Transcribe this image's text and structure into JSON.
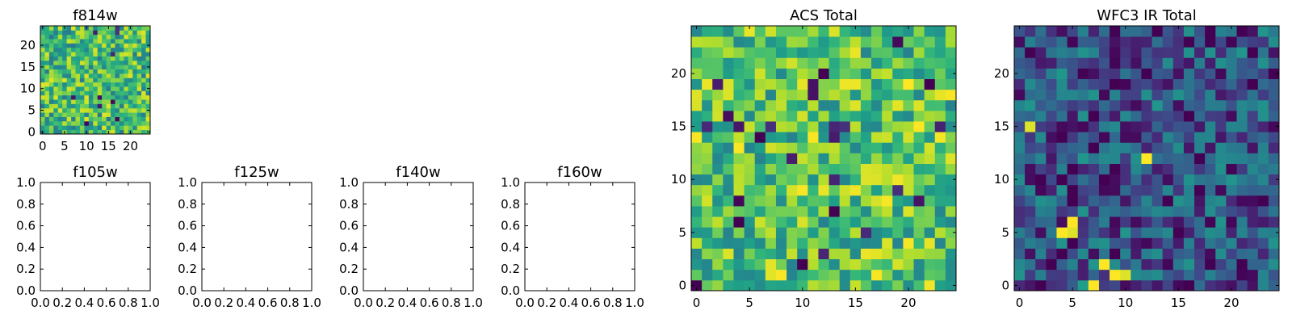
{
  "chart_data": [
    {
      "id": "f814w",
      "type": "heatmap",
      "title": "f814w",
      "colormap": "viridis",
      "grid_size": 25,
      "vmin": 0,
      "vmax": 1,
      "seed": 11,
      "bias": 0.68,
      "xlim": [
        -0.5,
        24.5
      ],
      "ylim": [
        -0.5,
        24.5
      ],
      "xticks": [
        0,
        5,
        10,
        15,
        20
      ],
      "xtick_labels": [
        "0",
        "5",
        "10",
        "15",
        "20"
      ],
      "yticks": [
        0,
        5,
        10,
        15,
        20
      ],
      "ytick_labels": [
        "0",
        "5",
        "10",
        "15",
        "20"
      ],
      "hotspots": []
    },
    {
      "id": "f105w",
      "type": "empty",
      "title": "f105w",
      "xlim": [
        0,
        1
      ],
      "ylim": [
        0,
        1
      ],
      "xticks": [
        0,
        0.2,
        0.4,
        0.6,
        0.8,
        1.0
      ],
      "xtick_labels": [
        "0.0",
        "0.2",
        "0.4",
        "0.6",
        "0.8",
        "1.0"
      ],
      "yticks": [
        0,
        0.2,
        0.4,
        0.6,
        0.8,
        1.0
      ],
      "ytick_labels": [
        "0.0",
        "0.2",
        "0.4",
        "0.6",
        "0.8",
        "1.0"
      ]
    },
    {
      "id": "f125w",
      "type": "empty",
      "title": "f125w",
      "xlim": [
        0,
        1
      ],
      "ylim": [
        0,
        1
      ],
      "xticks": [
        0,
        0.2,
        0.4,
        0.6,
        0.8,
        1.0
      ],
      "xtick_labels": [
        "0.0",
        "0.2",
        "0.4",
        "0.6",
        "0.8",
        "1.0"
      ],
      "yticks": [
        0,
        0.2,
        0.4,
        0.6,
        0.8,
        1.0
      ],
      "ytick_labels": [
        "0.0",
        "0.2",
        "0.4",
        "0.6",
        "0.8",
        "1.0"
      ]
    },
    {
      "id": "f140w",
      "type": "empty",
      "title": "f140w",
      "xlim": [
        0,
        1
      ],
      "ylim": [
        0,
        1
      ],
      "xticks": [
        0,
        0.2,
        0.4,
        0.6,
        0.8,
        1.0
      ],
      "xtick_labels": [
        "0.0",
        "0.2",
        "0.4",
        "0.6",
        "0.8",
        "1.0"
      ],
      "yticks": [
        0,
        0.2,
        0.4,
        0.6,
        0.8,
        1.0
      ],
      "ytick_labels": [
        "0.0",
        "0.2",
        "0.4",
        "0.6",
        "0.8",
        "1.0"
      ]
    },
    {
      "id": "f160w",
      "type": "empty",
      "title": "f160w",
      "xlim": [
        0,
        1
      ],
      "ylim": [
        0,
        1
      ],
      "xticks": [
        0,
        0.2,
        0.4,
        0.6,
        0.8,
        1.0
      ],
      "xtick_labels": [
        "0.0",
        "0.2",
        "0.4",
        "0.6",
        "0.8",
        "1.0"
      ],
      "yticks": [
        0,
        0.2,
        0.4,
        0.6,
        0.8,
        1.0
      ],
      "ytick_labels": [
        "0.0",
        "0.2",
        "0.4",
        "0.6",
        "0.8",
        "1.0"
      ]
    },
    {
      "id": "acs-total",
      "type": "heatmap",
      "title": "ACS Total",
      "colormap": "viridis",
      "grid_size": 25,
      "vmin": 0,
      "vmax": 1,
      "seed": 23,
      "bias": 0.72,
      "xlim": [
        -0.5,
        24.5
      ],
      "ylim": [
        -0.5,
        24.5
      ],
      "xticks": [
        0,
        5,
        10,
        15,
        20
      ],
      "xtick_labels": [
        "0",
        "5",
        "10",
        "15",
        "20"
      ],
      "yticks": [
        0,
        5,
        10,
        15,
        20
      ],
      "ytick_labels": [
        "0",
        "5",
        "10",
        "15",
        "20"
      ],
      "hotspots": [
        {
          "x": 0,
          "y": 0,
          "v": 0.0
        },
        {
          "x": 12,
          "y": 20,
          "v": 0.0
        },
        {
          "x": 11,
          "y": 18,
          "v": 0.05
        },
        {
          "x": 11,
          "y": 19,
          "v": 0.05
        },
        {
          "x": 22,
          "y": 19,
          "v": 0.0
        },
        {
          "x": 11,
          "y": 18,
          "v": 0.05
        },
        {
          "x": 6,
          "y": 14,
          "v": 0.0
        },
        {
          "x": 4,
          "y": 6,
          "v": 0.0
        },
        {
          "x": 13,
          "y": 7,
          "v": 0.0
        },
        {
          "x": 10,
          "y": 2,
          "v": 0.0
        },
        {
          "x": 20,
          "y": 19,
          "v": 1.0
        },
        {
          "x": 21,
          "y": 15,
          "v": 1.0
        }
      ]
    },
    {
      "id": "wfc3-ir-total",
      "type": "heatmap",
      "title": "WFC3 IR Total",
      "colormap": "viridis",
      "grid_size": 25,
      "vmin": 0,
      "vmax": 1,
      "seed": 37,
      "bias": 0.25,
      "xlim": [
        -0.5,
        24.5
      ],
      "ylim": [
        -0.5,
        24.5
      ],
      "xticks": [
        0,
        5,
        10,
        15,
        20
      ],
      "xtick_labels": [
        "0",
        "5",
        "10",
        "15",
        "20"
      ],
      "yticks": [
        0,
        5,
        10,
        15,
        20
      ],
      "ytick_labels": [
        "0",
        "5",
        "10",
        "15",
        "20"
      ],
      "hotspots": [
        {
          "x": 1,
          "y": 15,
          "v": 0.95
        },
        {
          "x": 12,
          "y": 12,
          "v": 1.0
        },
        {
          "x": 5,
          "y": 6,
          "v": 1.0
        },
        {
          "x": 4,
          "y": 5,
          "v": 1.0
        },
        {
          "x": 5,
          "y": 5,
          "v": 0.95
        },
        {
          "x": 8,
          "y": 2,
          "v": 1.0
        },
        {
          "x": 9,
          "y": 1,
          "v": 1.0
        },
        {
          "x": 10,
          "y": 1,
          "v": 0.95
        },
        {
          "x": 7,
          "y": 0,
          "v": 1.0
        },
        {
          "x": 6,
          "y": 0,
          "v": 0.55
        }
      ]
    }
  ]
}
